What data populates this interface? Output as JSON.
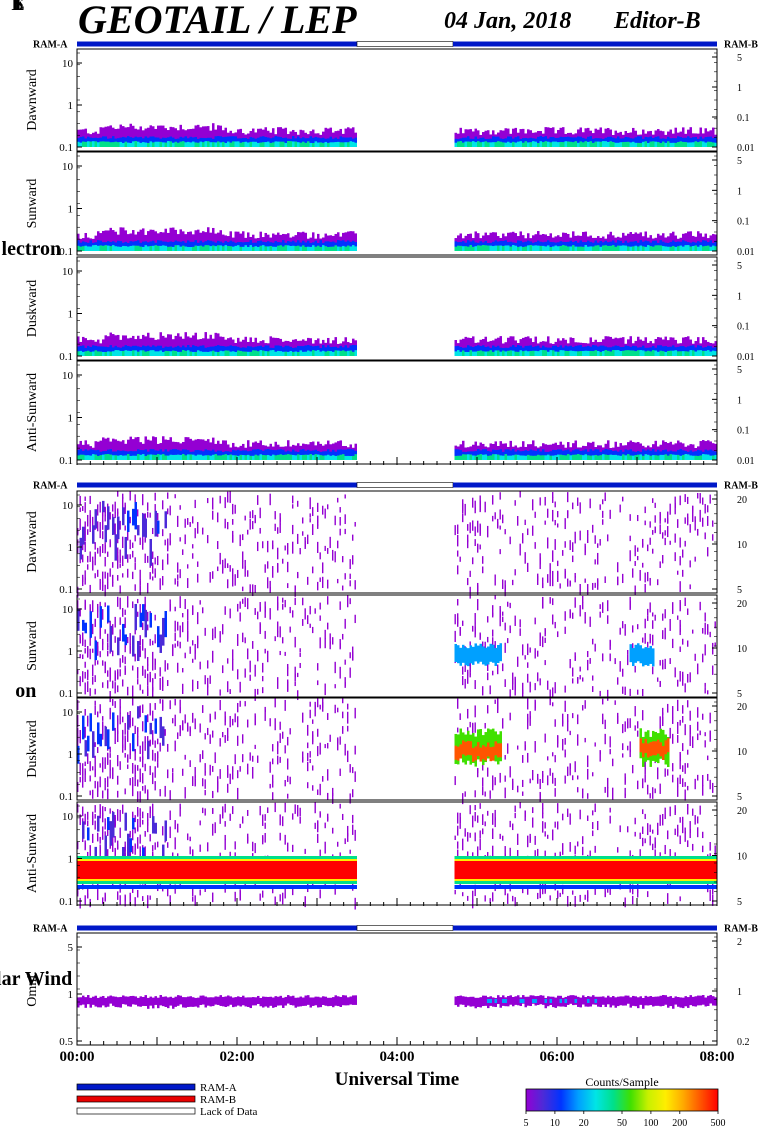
{
  "header": {
    "title": "GEOTAIL / LEP",
    "date": "04 Jan, 2018",
    "editor": "Editor-B"
  },
  "chart_data": {
    "type": "heatmap",
    "x_range_hours": [
      0,
      8
    ],
    "x_ticks": [
      "00:00",
      "02:00",
      "04:00",
      "06:00",
      "08:00"
    ],
    "xlabel": "Universal Time",
    "data_gap_hours": [
      3.5,
      4.7
    ],
    "colorbar": {
      "title": "Counts/Sample",
      "ticks": [
        "5",
        "10",
        "20",
        "50",
        "100",
        "200",
        "500"
      ],
      "colors": [
        "#9400d3",
        "#4b2bd8",
        "#0033ff",
        "#00a0ff",
        "#00e5e5",
        "#00e08a",
        "#40e000",
        "#c8f000",
        "#ffee00",
        "#ffaa00",
        "#ff5500",
        "#ff0000"
      ]
    },
    "groups": [
      {
        "name": "Electron",
        "ram_left": "RAM-A",
        "ram_right": "RAM-B",
        "panels": [
          {
            "name": "Dawnward",
            "left_ticks": [
              "10",
              "1",
              "0.1"
            ],
            "right_ticks": [
              "5",
              "1",
              "0.1",
              "0.01"
            ],
            "level": 0.16,
            "pattern": "electron"
          },
          {
            "name": "Sunward",
            "left_ticks": [
              "10",
              "1",
              "0.1"
            ],
            "right_ticks": [
              "5",
              "1",
              "0.1",
              "0.01"
            ],
            "level": 0.16,
            "pattern": "electron"
          },
          {
            "name": "Duskward",
            "left_ticks": [
              "10",
              "1",
              "0.1"
            ],
            "right_ticks": [
              "5",
              "1",
              "0.1",
              "0.01"
            ],
            "level": 0.15,
            "pattern": "electron"
          },
          {
            "name": "Anti-Sunward",
            "left_ticks": [
              "10",
              "1",
              "0.1"
            ],
            "right_ticks": [
              "5",
              "1",
              "0.1",
              "0.01"
            ],
            "level": 0.17,
            "pattern": "electron"
          }
        ]
      },
      {
        "name": "Ion",
        "ram_left": "RAM-A",
        "ram_right": "RAM-B",
        "panels": [
          {
            "name": "Dawnward",
            "left_ticks": [
              "10",
              "1",
              "0.1"
            ],
            "right_ticks": [
              "20",
              "10",
              "5"
            ],
            "level": 0.0,
            "pattern": "ion"
          },
          {
            "name": "Sunward",
            "left_ticks": [
              "10",
              "1",
              "0.1"
            ],
            "right_ticks": [
              "20",
              "10",
              "5"
            ],
            "level": 0.0,
            "pattern": "ion-sun"
          },
          {
            "name": "Duskward",
            "left_ticks": [
              "10",
              "1",
              "0.1"
            ],
            "right_ticks": [
              "20",
              "10",
              "5"
            ],
            "level": 0.0,
            "pattern": "ion-dusk"
          },
          {
            "name": "Anti-Sunward",
            "left_ticks": [
              "10",
              "1",
              "0.1"
            ],
            "right_ticks": [
              "20",
              "10",
              "5"
            ],
            "level": 0.0,
            "pattern": "ion-anti"
          }
        ]
      },
      {
        "name": "Solar Wind",
        "ram_left": "RAM-A",
        "ram_right": "RAM-B",
        "panels": [
          {
            "name": "Omni.",
            "left_ticks": [
              "5",
              "1",
              "0.5"
            ],
            "right_ticks": [
              "2",
              "1",
              "0.2"
            ],
            "level": 0.4,
            "pattern": "sw"
          }
        ]
      }
    ]
  },
  "legend": {
    "items": [
      {
        "label": "RAM-A",
        "color": "#0018c8"
      },
      {
        "label": "RAM-B",
        "color": "#e80000"
      },
      {
        "label": "Lack of Data",
        "color": "#ffffff"
      }
    ]
  }
}
